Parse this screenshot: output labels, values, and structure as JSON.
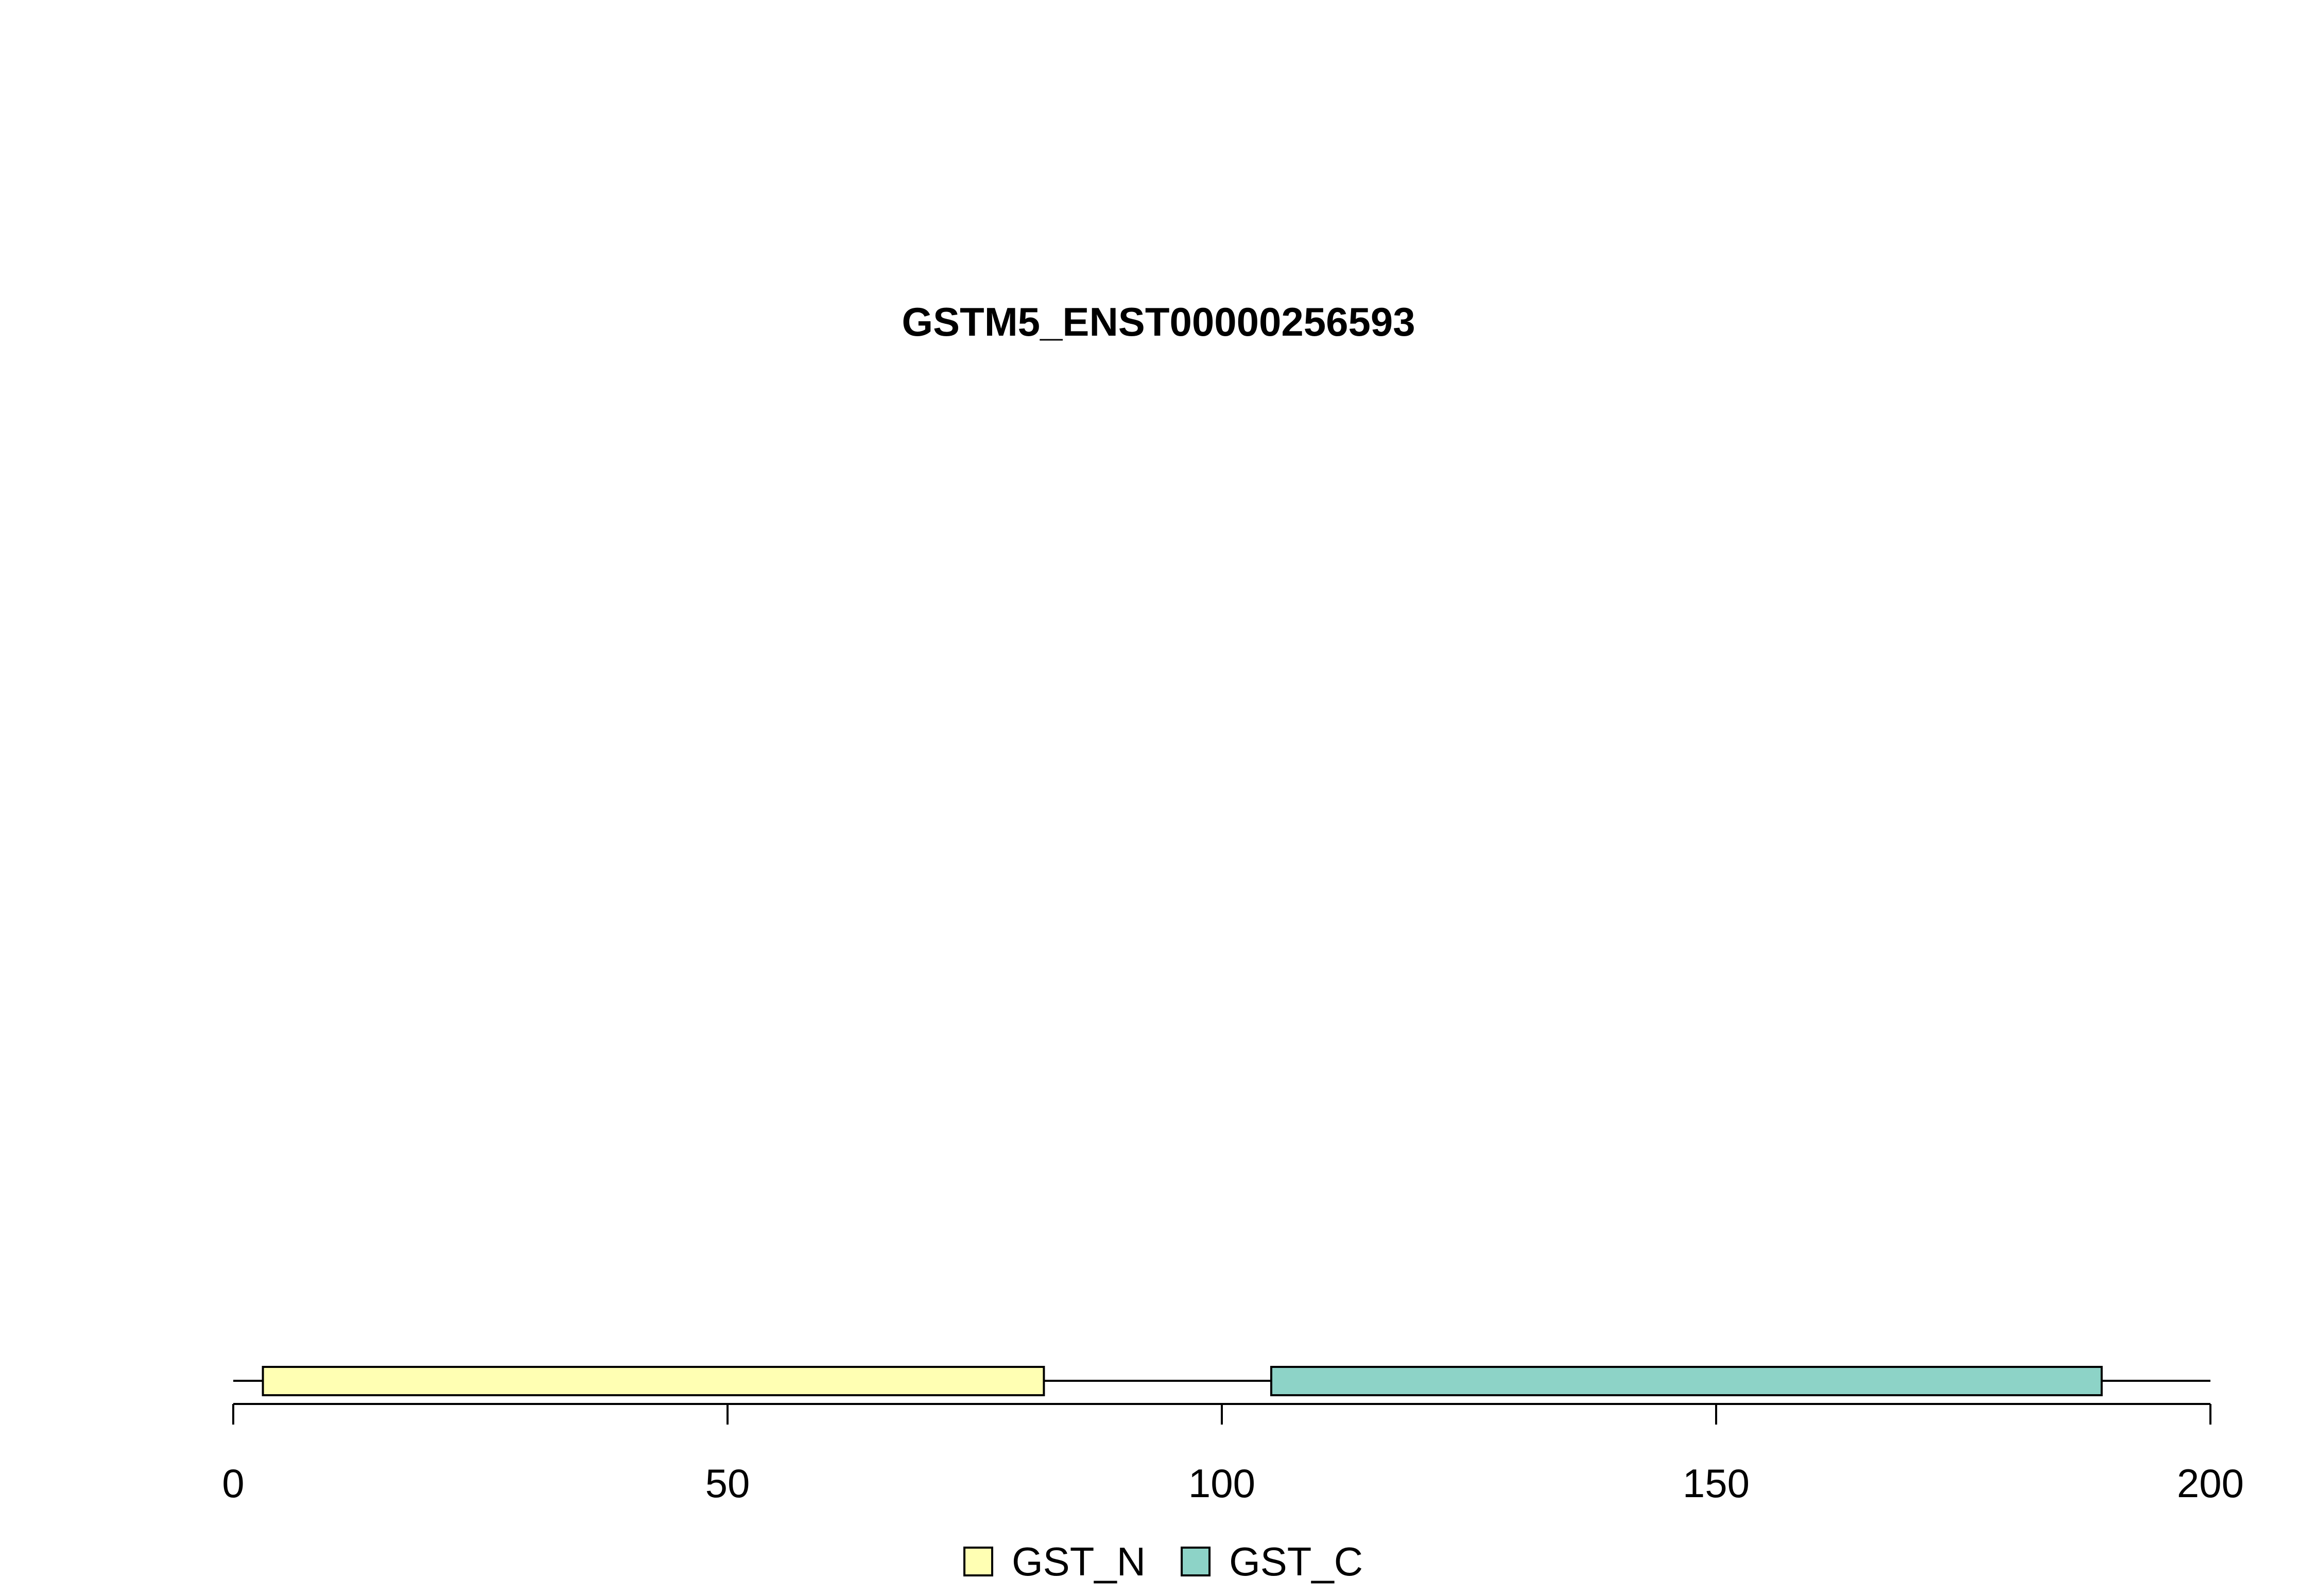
{
  "chart_data": {
    "type": "bar",
    "title": "GSTM5_ENST00000256593",
    "xlabel": "",
    "ylabel": "",
    "xlim": [
      0,
      200
    ],
    "x_ticks": [
      0,
      50,
      100,
      150,
      200
    ],
    "x_tick_labels": [
      "0",
      "50",
      "100",
      "150",
      "200"
    ],
    "backbone": {
      "start": 0,
      "end": 200
    },
    "domains": [
      {
        "name": "GST_N",
        "start": 3,
        "end": 82,
        "color": "#FFFFB3"
      },
      {
        "name": "GST_C",
        "start": 105,
        "end": 189,
        "color": "#8DD3C7"
      }
    ],
    "legend": {
      "placement": "bottom-center",
      "entries": [
        {
          "label": "GST_N",
          "color": "#FFFFB3"
        },
        {
          "label": "GST_C",
          "color": "#8DD3C7"
        }
      ]
    },
    "grid": false
  }
}
